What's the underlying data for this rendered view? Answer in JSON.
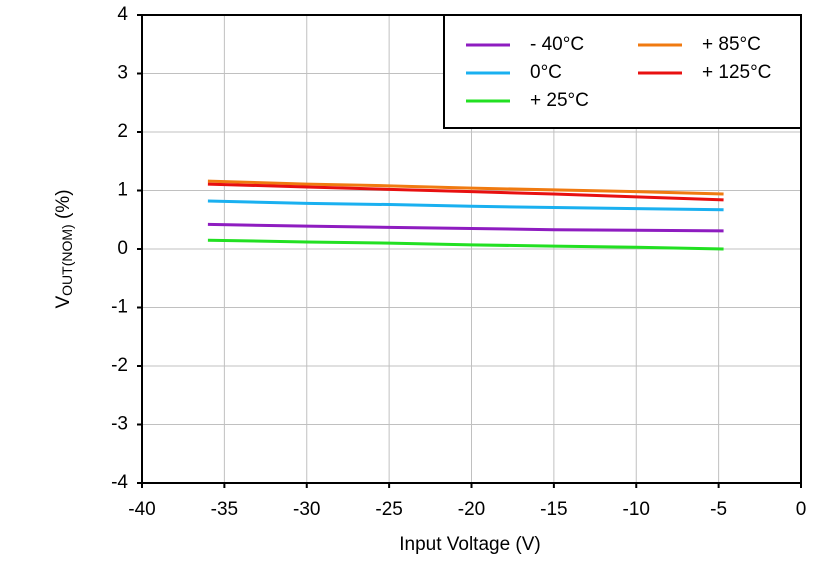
{
  "chart_data": {
    "type": "line",
    "x_label": "Input Voltage (V)",
    "y_label": {
      "base": "V",
      "subscript": "OUT(NOM)",
      "suffix": " (%)"
    },
    "x": [
      -36,
      -30,
      -25,
      -20,
      -15,
      -10,
      -4.7
    ],
    "series": [
      {
        "name": "- 40°C",
        "color": "#8e1cc0",
        "values": [
          0.42,
          0.39,
          0.37,
          0.35,
          0.33,
          0.32,
          0.31
        ]
      },
      {
        "name": "0°C",
        "color": "#1ab0f0",
        "values": [
          0.82,
          0.78,
          0.76,
          0.73,
          0.71,
          0.69,
          0.67
        ]
      },
      {
        "name": "+ 25°C",
        "color": "#22e022",
        "values": [
          0.15,
          0.12,
          0.1,
          0.07,
          0.05,
          0.03,
          0.0
        ]
      },
      {
        "name": "+ 85°C",
        "color": "#f07a10",
        "values": [
          1.16,
          1.11,
          1.08,
          1.04,
          1.01,
          0.98,
          0.94
        ]
      },
      {
        "name": "+ 125°C",
        "color": "#e81010",
        "values": [
          1.11,
          1.06,
          1.02,
          0.98,
          0.94,
          0.89,
          0.84
        ]
      }
    ],
    "xlim": [
      -40,
      0
    ],
    "xticks": [
      -40,
      -35,
      -30,
      -25,
      -20,
      -15,
      -10,
      -5,
      0
    ],
    "ylim": [
      -4,
      4
    ],
    "yticks": [
      -4,
      -3,
      -2,
      -1,
      0,
      1,
      2,
      3,
      4
    ],
    "grid": true,
    "legend": "top-right"
  }
}
